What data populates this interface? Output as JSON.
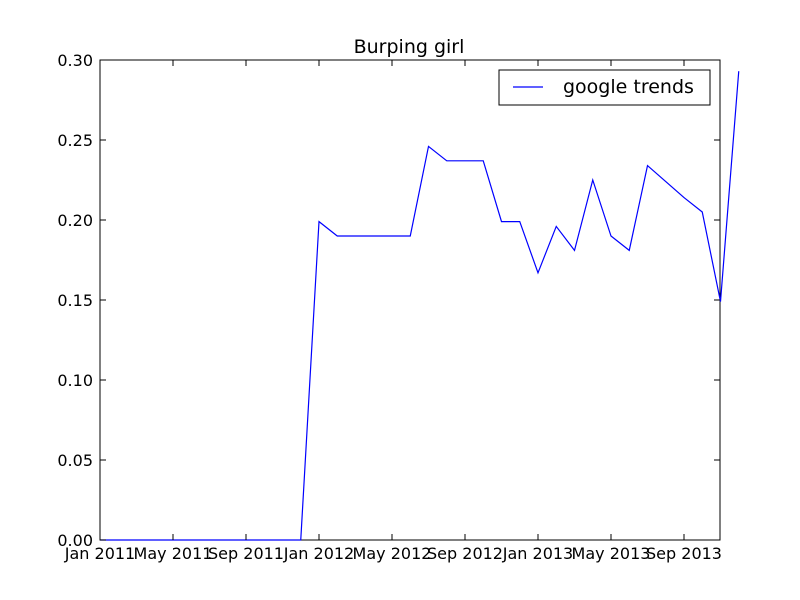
{
  "chart_data": {
    "type": "line",
    "title": "Burping girl",
    "xlabel": "",
    "ylabel": "",
    "x_ticks": [
      "Jan 2011",
      "May 2011",
      "Sep 2011",
      "Jan 2012",
      "May 2012",
      "Sep 2012",
      "Jan 2013",
      "May 2013",
      "Sep 2013"
    ],
    "y_ticks": [
      "0.00",
      "0.05",
      "0.10",
      "0.15",
      "0.20",
      "0.25",
      "0.30"
    ],
    "xlim": [
      "2011-01",
      "2013-11"
    ],
    "ylim": [
      0,
      0.3
    ],
    "grid": false,
    "legend_position": "top-right",
    "series": [
      {
        "name": "google trends",
        "color": "#0000ff",
        "points": [
          {
            "x": "2011-01",
            "y": 0.0
          },
          {
            "x": "2011-12",
            "y": 0.0
          },
          {
            "x": "2012-01",
            "y": 0.199
          },
          {
            "x": "2012-02",
            "y": 0.19
          },
          {
            "x": "2012-03",
            "y": 0.19
          },
          {
            "x": "2012-04",
            "y": 0.19
          },
          {
            "x": "2012-05",
            "y": 0.19
          },
          {
            "x": "2012-06",
            "y": 0.19
          },
          {
            "x": "2012-07",
            "y": 0.246
          },
          {
            "x": "2012-08",
            "y": 0.237
          },
          {
            "x": "2012-09",
            "y": 0.237
          },
          {
            "x": "2012-10",
            "y": 0.237
          },
          {
            "x": "2012-11",
            "y": 0.199
          },
          {
            "x": "2012-12",
            "y": 0.199
          },
          {
            "x": "2013-01",
            "y": 0.167
          },
          {
            "x": "2013-02",
            "y": 0.196
          },
          {
            "x": "2013-03",
            "y": 0.181
          },
          {
            "x": "2013-04",
            "y": 0.225
          },
          {
            "x": "2013-05",
            "y": 0.19
          },
          {
            "x": "2013-06",
            "y": 0.181
          },
          {
            "x": "2013-07",
            "y": 0.234
          },
          {
            "x": "2013-08",
            "y": 0.224
          },
          {
            "x": "2013-09",
            "y": 0.214
          },
          {
            "x": "2013-10",
            "y": 0.205
          },
          {
            "x": "2013-11",
            "y": 0.149
          },
          {
            "x": "2013-12",
            "y": 0.293
          }
        ]
      }
    ]
  }
}
